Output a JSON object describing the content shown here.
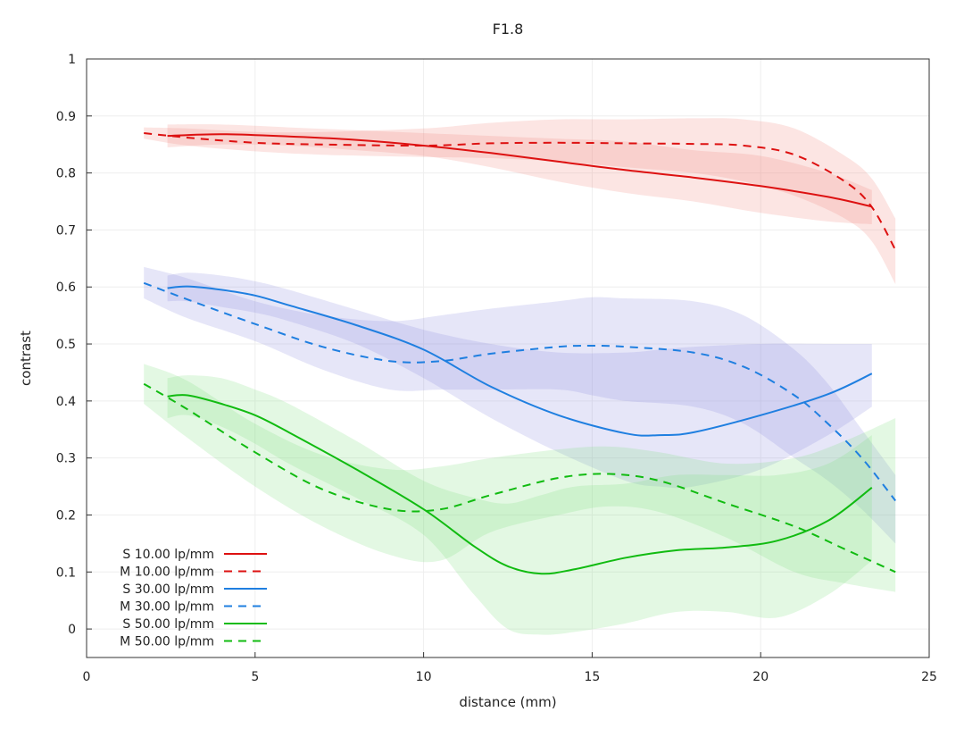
{
  "chart_data": {
    "type": "line",
    "title": "F1.8",
    "xlabel": "distance (mm)",
    "ylabel": "contrast",
    "xlim": [
      0,
      25
    ],
    "ylim": [
      -0.05,
      1.0
    ],
    "x_ticks": [
      "0",
      "5",
      "10",
      "15",
      "20",
      "25"
    ],
    "y_ticks": [
      "0",
      "0.1",
      "0.2",
      "0.3",
      "0.4",
      "0.5",
      "0.6",
      "0.7",
      "0.8",
      "0.9",
      "1"
    ],
    "grid": true,
    "legend_position": "bottom-left",
    "series": [
      {
        "name": "S 10.00 lp/mm",
        "color": "#dd1111",
        "dash": false,
        "x": [
          2.4,
          4,
          6,
          8,
          10,
          12,
          14,
          16,
          18,
          20,
          22,
          23.3
        ],
        "y": [
          0.865,
          0.868,
          0.864,
          0.858,
          0.848,
          0.835,
          0.82,
          0.805,
          0.792,
          0.777,
          0.758,
          0.741
        ],
        "band_upper": [
          0.885,
          0.885,
          0.88,
          0.875,
          0.87,
          0.865,
          0.86,
          0.855,
          0.84,
          0.83,
          0.8,
          0.77
        ],
        "band_lower": [
          0.845,
          0.85,
          0.848,
          0.84,
          0.83,
          0.81,
          0.785,
          0.765,
          0.75,
          0.73,
          0.715,
          0.71
        ]
      },
      {
        "name": "M 10.00 lp/mm",
        "color": "#dd1111",
        "dash": true,
        "x": [
          1.7,
          3,
          5,
          7,
          10,
          12,
          14,
          16,
          18,
          19.5,
          21,
          22.5,
          23.3,
          24
        ],
        "y": [
          0.87,
          0.862,
          0.853,
          0.85,
          0.848,
          0.852,
          0.853,
          0.852,
          0.851,
          0.848,
          0.832,
          0.785,
          0.74,
          0.665
        ],
        "band_upper": [
          0.88,
          0.878,
          0.872,
          0.872,
          0.878,
          0.888,
          0.894,
          0.894,
          0.896,
          0.894,
          0.878,
          0.83,
          0.79,
          0.72
        ],
        "band_lower": [
          0.86,
          0.848,
          0.838,
          0.832,
          0.828,
          0.826,
          0.82,
          0.81,
          0.8,
          0.785,
          0.76,
          0.72,
          0.68,
          0.605
        ]
      },
      {
        "name": "S 30.00 lp/mm",
        "color": "#1f7fe0",
        "dash": false,
        "x": [
          2.4,
          3,
          4,
          5,
          6,
          8,
          10,
          12,
          14,
          16,
          17,
          18,
          20,
          22,
          23.3
        ],
        "y": [
          0.598,
          0.601,
          0.595,
          0.585,
          0.568,
          0.533,
          0.49,
          0.425,
          0.375,
          0.343,
          0.34,
          0.345,
          0.375,
          0.412,
          0.448
        ],
        "band_upper": [
          0.62,
          0.625,
          0.62,
          0.61,
          0.595,
          0.56,
          0.525,
          0.5,
          0.485,
          0.485,
          0.49,
          0.495,
          0.5,
          0.5,
          0.5
        ],
        "band_lower": [
          0.575,
          0.575,
          0.565,
          0.555,
          0.54,
          0.5,
          0.44,
          0.37,
          0.31,
          0.26,
          0.25,
          0.25,
          0.28,
          0.34,
          0.39
        ]
      },
      {
        "name": "M 30.00 lp/mm",
        "color": "#1f7fe0",
        "dash": true,
        "x": [
          1.7,
          3,
          5,
          7,
          9,
          10.5,
          12,
          14,
          15,
          16,
          18,
          19.5,
          21,
          22,
          23,
          24
        ],
        "y": [
          0.607,
          0.578,
          0.535,
          0.495,
          0.47,
          0.47,
          0.483,
          0.495,
          0.497,
          0.495,
          0.485,
          0.46,
          0.41,
          0.36,
          0.3,
          0.225
        ],
        "band_upper": [
          0.635,
          0.615,
          0.575,
          0.55,
          0.54,
          0.55,
          0.562,
          0.575,
          0.582,
          0.58,
          0.575,
          0.55,
          0.49,
          0.43,
          0.35,
          0.27
        ],
        "band_lower": [
          0.58,
          0.545,
          0.505,
          0.455,
          0.42,
          0.42,
          0.42,
          0.42,
          0.41,
          0.4,
          0.39,
          0.36,
          0.3,
          0.26,
          0.21,
          0.15
        ]
      },
      {
        "name": "S 50.00 lp/mm",
        "color": "#11bb11",
        "dash": false,
        "x": [
          2.4,
          3,
          4,
          5,
          6,
          8,
          10,
          11.5,
          12.5,
          13.5,
          14.5,
          16,
          17.5,
          19,
          20.5,
          22,
          23.3
        ],
        "y": [
          0.408,
          0.41,
          0.395,
          0.375,
          0.345,
          0.28,
          0.21,
          0.145,
          0.11,
          0.097,
          0.105,
          0.125,
          0.138,
          0.143,
          0.155,
          0.19,
          0.248
        ],
        "band_upper": [
          0.44,
          0.445,
          0.44,
          0.42,
          0.395,
          0.33,
          0.26,
          0.23,
          0.22,
          0.235,
          0.25,
          0.255,
          0.27,
          0.27,
          0.27,
          0.29,
          0.34
        ],
        "band_lower": [
          0.37,
          0.375,
          0.355,
          0.325,
          0.29,
          0.23,
          0.165,
          0.06,
          0.0,
          -0.01,
          -0.005,
          0.01,
          0.03,
          0.03,
          0.02,
          0.06,
          0.12
        ]
      },
      {
        "name": "M 50.00 lp/mm",
        "color": "#11bb11",
        "dash": true,
        "x": [
          1.7,
          3,
          5,
          7,
          9,
          10.5,
          12,
          14,
          15.5,
          17,
          19,
          21,
          22.5,
          24
        ],
        "y": [
          0.43,
          0.385,
          0.31,
          0.245,
          0.21,
          0.21,
          0.235,
          0.265,
          0.272,
          0.26,
          0.22,
          0.18,
          0.14,
          0.1
        ],
        "band_upper": [
          0.465,
          0.435,
          0.36,
          0.305,
          0.28,
          0.285,
          0.3,
          0.315,
          0.32,
          0.31,
          0.29,
          0.3,
          0.33,
          0.37
        ],
        "band_lower": [
          0.395,
          0.335,
          0.25,
          0.18,
          0.13,
          0.12,
          0.17,
          0.2,
          0.215,
          0.205,
          0.16,
          0.1,
          0.08,
          0.065
        ]
      }
    ]
  }
}
